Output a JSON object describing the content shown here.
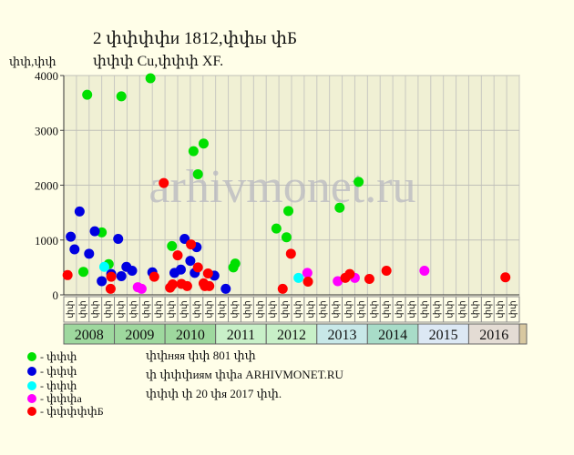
{
  "chart_data": {
    "type": "scatter",
    "title": "2 փփփփи 1812,փփы փБ",
    "subtitle": "փփփ Cu,փփփ XF.",
    "ylabel": "փփ,փփ",
    "ylim": [
      0,
      4000
    ],
    "yticks": [
      0,
      1000,
      2000,
      3000,
      4000
    ],
    "grid": true,
    "watermark": "arhivmonet.ru",
    "quarter_labels": [
      "փփ",
      "փփ",
      "փփ",
      "փփ",
      "փփ",
      "փփ",
      "փփ",
      "փփ",
      "փփ",
      "փփ",
      "փփ",
      "փփ",
      "փփ",
      "փփ",
      "փփ",
      "փփ",
      "փփ",
      "փփ",
      "փփ",
      "փփ",
      "փփ",
      "փփ",
      "փփ",
      "փփ",
      "փփ",
      "փփ",
      "փփ",
      "փփ",
      "փփ",
      "փփ",
      "փփ",
      "փփ",
      "փփ",
      "փփ",
      "փփ",
      "փփ"
    ],
    "years": [
      {
        "label": "2008",
        "color": "#9ed89e"
      },
      {
        "label": "2009",
        "color": "#9ed89e"
      },
      {
        "label": "2010",
        "color": "#9ed89e"
      },
      {
        "label": "2011",
        "color": "#c8f0c8"
      },
      {
        "label": "2012",
        "color": "#c8f0c8"
      },
      {
        "label": "2013",
        "color": "#c8e8e8"
      },
      {
        "label": "2014",
        "color": "#a8dcc8"
      },
      {
        "label": "2015",
        "color": "#dce8f4"
      },
      {
        "label": "2016",
        "color": "#e4dcd4"
      }
    ],
    "series": [
      {
        "name": "- փփփ",
        "color": "#00e000",
        "points": [
          [
            1.55,
            420
          ],
          [
            1.85,
            3650
          ],
          [
            3.0,
            1140
          ],
          [
            3.55,
            560
          ],
          [
            4.55,
            3620
          ],
          [
            6.85,
            3950
          ],
          [
            8.55,
            890
          ],
          [
            10.25,
            2620
          ],
          [
            10.6,
            2200
          ],
          [
            11.05,
            2760
          ],
          [
            13.4,
            500
          ],
          [
            13.55,
            570
          ],
          [
            16.8,
            1210
          ],
          [
            17.6,
            1050
          ],
          [
            17.75,
            1530
          ],
          [
            21.8,
            1590
          ],
          [
            23.3,
            2060
          ]
        ]
      },
      {
        "name": "- փփփ",
        "color": "#0000e0",
        "points": [
          [
            0.55,
            1060
          ],
          [
            0.85,
            830
          ],
          [
            1.25,
            1520
          ],
          [
            2.0,
            750
          ],
          [
            2.45,
            1160
          ],
          [
            3.0,
            250
          ],
          [
            3.75,
            380
          ],
          [
            4.3,
            1020
          ],
          [
            4.55,
            340
          ],
          [
            4.95,
            510
          ],
          [
            5.4,
            440
          ],
          [
            7.0,
            410
          ],
          [
            8.75,
            400
          ],
          [
            9.25,
            460
          ],
          [
            9.55,
            1020
          ],
          [
            10.0,
            620
          ],
          [
            10.35,
            400
          ],
          [
            10.5,
            870
          ],
          [
            11.9,
            350
          ],
          [
            12.8,
            110
          ]
        ]
      },
      {
        "name": "- փփփ",
        "color": "#00ffff",
        "points": [
          [
            3.2,
            510
          ],
          [
            18.55,
            310
          ]
        ]
      },
      {
        "name": "- փփփа",
        "color": "#ff00ff",
        "points": [
          [
            5.85,
            140
          ],
          [
            6.15,
            110
          ],
          [
            19.25,
            400
          ],
          [
            21.65,
            250
          ],
          [
            23.0,
            310
          ],
          [
            28.5,
            440
          ]
        ]
      },
      {
        "name": "- փփփփփБ",
        "color": "#ff0000",
        "points": [
          [
            0.3,
            360
          ],
          [
            3.7,
            110
          ],
          [
            3.75,
            330
          ],
          [
            7.15,
            330
          ],
          [
            7.9,
            2040
          ],
          [
            8.4,
            130
          ],
          [
            8.6,
            190
          ],
          [
            9.0,
            720
          ],
          [
            9.3,
            200
          ],
          [
            9.75,
            160
          ],
          [
            10.05,
            920
          ],
          [
            10.6,
            500
          ],
          [
            11.05,
            210
          ],
          [
            11.15,
            160
          ],
          [
            11.4,
            390
          ],
          [
            11.5,
            160
          ],
          [
            17.3,
            110
          ],
          [
            17.95,
            750
          ],
          [
            19.3,
            240
          ],
          [
            22.25,
            310
          ],
          [
            22.6,
            380
          ],
          [
            24.15,
            290
          ],
          [
            25.5,
            440
          ],
          [
            34.9,
            320
          ]
        ]
      }
    ]
  },
  "legend": [
    {
      "label": "- փփփ",
      "color": "#00e000"
    },
    {
      "label": "- փփփ",
      "color": "#0000e0"
    },
    {
      "label": "- փփփ",
      "color": "#00ffff"
    },
    {
      "label": "- փփփа",
      "color": "#ff00ff"
    },
    {
      "label": "- փփփփփБ",
      "color": "#ff0000"
    }
  ],
  "notes": {
    "line1": "փփняя փփ 801 փփ",
    "line2": "փ փփփиям փփа ARHIVMONET.RU",
    "line3": "փփփ փ 20 փя 2017 փփ."
  }
}
